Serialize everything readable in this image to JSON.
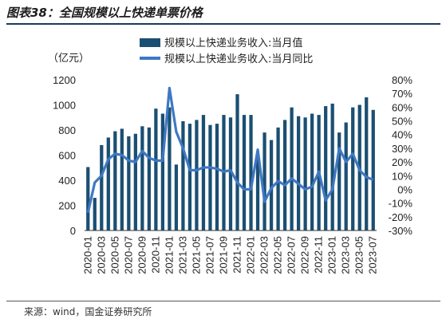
{
  "header": {
    "title": "图表38：全国规模以上快递单票价格"
  },
  "footer": {
    "source": "来源：wind，国金证券研究所"
  },
  "chart_data": {
    "type": "bar",
    "ylabel": "（亿元）",
    "ylim": [
      0,
      1200
    ],
    "y_ticks": [
      "0",
      "200",
      "400",
      "600",
      "800",
      "1000",
      "1200"
    ],
    "y2lim": [
      -30,
      80
    ],
    "y2_ticks": [
      "-30%",
      "-20%",
      "-10%",
      "0%",
      "10%",
      "20%",
      "30%",
      "40%",
      "50%",
      "60%",
      "70%",
      "80%"
    ],
    "x_tick_labels": [
      "2020-01",
      "2020-03",
      "2020-05",
      "2020-07",
      "2020-09",
      "2020-11",
      "2021-01",
      "2021-03",
      "2021-05",
      "2021-07",
      "2021-09",
      "2021-11",
      "2022-01",
      "2022-03",
      "2022-05",
      "2022-07",
      "2022-09",
      "2022-11",
      "2023-01",
      "2023-03",
      "2023-05",
      "2023-07"
    ],
    "categories": [
      "2020-01",
      "2020-02",
      "2020-03",
      "2020-04",
      "2020-05",
      "2020-06",
      "2020-07",
      "2020-08",
      "2020-09",
      "2020-10",
      "2020-11",
      "2020-12",
      "2021-01",
      "2021-02",
      "2021-03",
      "2021-04",
      "2021-05",
      "2021-06",
      "2021-07",
      "2021-08",
      "2021-09",
      "2021-10",
      "2021-11",
      "2021-12",
      "2022-01",
      "2022-02",
      "2022-03",
      "2022-04",
      "2022-05",
      "2022-06",
      "2022-07",
      "2022-08",
      "2022-09",
      "2022-10",
      "2022-11",
      "2022-12",
      "2023-01",
      "2023-02",
      "2023-03",
      "2023-04",
      "2023-05",
      "2023-06",
      "2023-07"
    ],
    "series": [
      {
        "name": "规模以上快递业务收入:当月值",
        "type": "bar",
        "axis": "left",
        "color": "#1b4f72",
        "values": [
          505,
          260,
          680,
          740,
          790,
          810,
          750,
          770,
          830,
          820,
          970,
          930,
          980,
          525,
          870,
          850,
          880,
          920,
          840,
          850,
          920,
          900,
          1085,
          920,
          920,
          600,
          780,
          720,
          820,
          880,
          980,
          910,
          900,
          930,
          920,
          990,
          1010,
          780,
          860,
          980,
          1000,
          1060,
          960
        ]
      },
      {
        "name": "规模以上快递业务收入:当月同比",
        "type": "line",
        "axis": "right",
        "color": "#3f78c4",
        "values": [
          -17,
          5,
          10,
          22,
          26,
          25,
          21,
          20,
          28,
          23,
          21,
          21,
          74,
          42,
          30,
          14,
          14,
          16,
          16,
          15,
          13,
          14,
          5,
          0,
          0,
          29,
          -9,
          1,
          6,
          3,
          8,
          4,
          0,
          2,
          13,
          -8,
          0,
          30,
          20,
          26,
          14,
          9,
          7
        ]
      }
    ],
    "legend_position": "top-right",
    "grid": false
  }
}
